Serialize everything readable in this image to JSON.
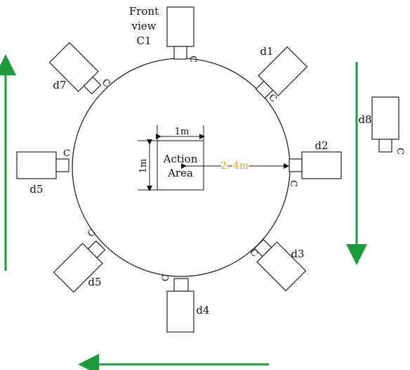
{
  "cameras": {
    "c1": {
      "label_line1": "Front",
      "label_line2": "view",
      "label_line3": "C1",
      "lens": "C"
    },
    "d1": {
      "label": "d1",
      "lens": "C"
    },
    "d2": {
      "label": "d2",
      "lens": "C"
    },
    "d3": {
      "label": "d3",
      "lens": "C"
    },
    "d4": {
      "label": "d4",
      "lens": "C"
    },
    "d5_left": {
      "label": "d5",
      "lens": "C"
    },
    "d5_lower": {
      "label": "d5",
      "lens": "C"
    },
    "d7": {
      "label": "d7",
      "lens": "C"
    },
    "d8": {
      "label": "d8",
      "lens": "C"
    }
  },
  "action_area": {
    "line1": "Action",
    "line2": "Area",
    "width_label": "1m",
    "height_label": "1m"
  },
  "distance_label": "2. 4m",
  "colors": {
    "arrow": "#1a9c3a",
    "distance": "#f0a000"
  }
}
